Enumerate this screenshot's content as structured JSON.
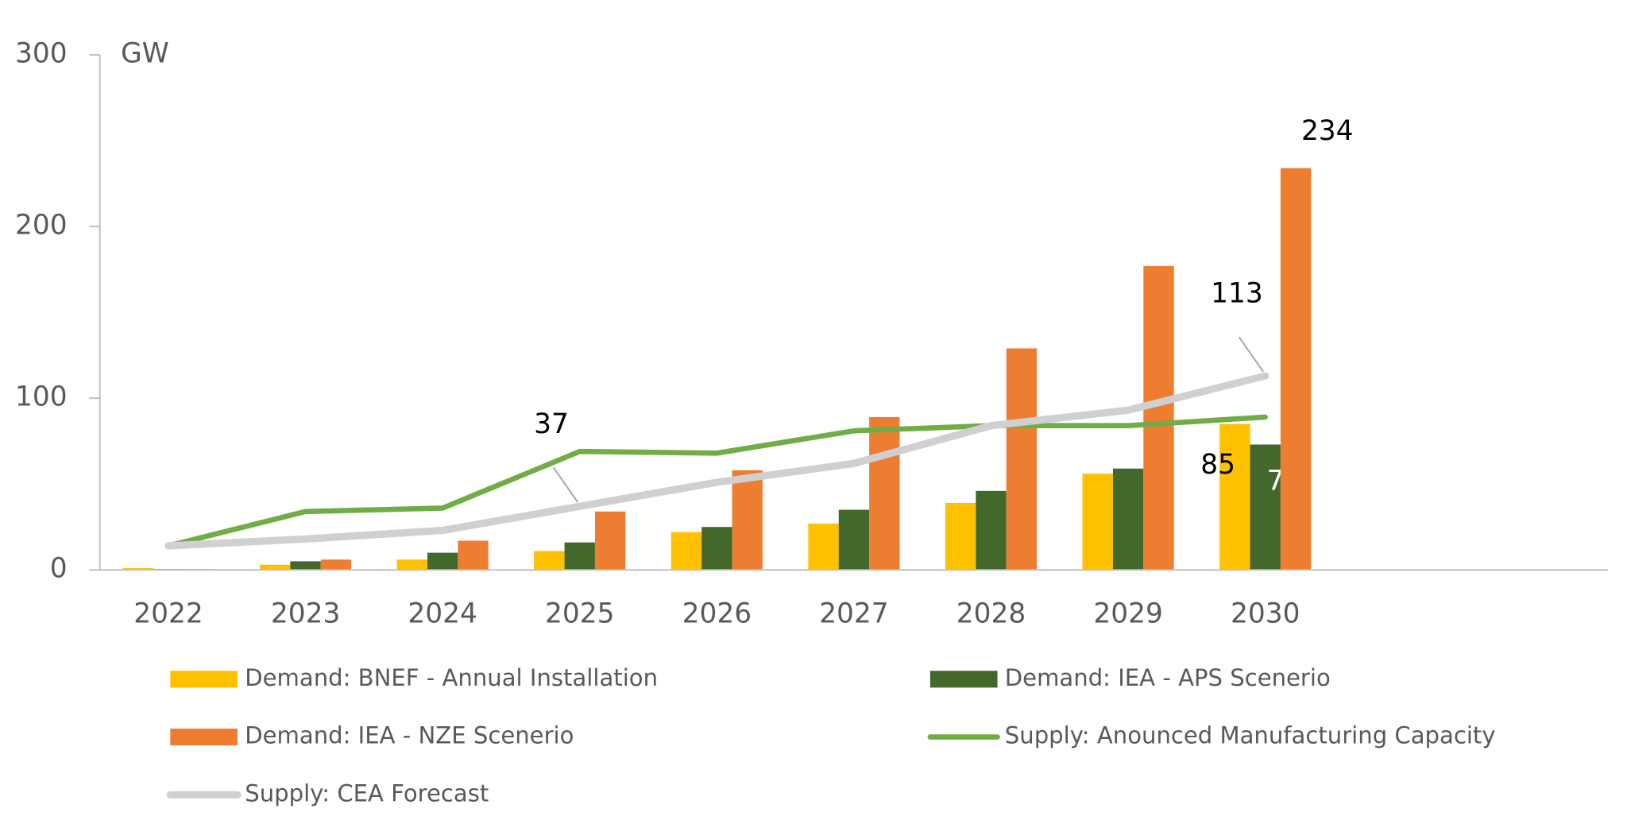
{
  "chart_data": {
    "type": "bar",
    "y_unit": "GW",
    "categories": [
      "2022",
      "2023",
      "2024",
      "2025",
      "2026",
      "2027",
      "2028",
      "2029",
      "2030",
      null,
      null
    ],
    "series": [
      {
        "name": "Demand: BNEF - Annual Installation",
        "type": "bar",
        "color": "#FFC000",
        "values": [
          1,
          3,
          6,
          11,
          22,
          27,
          39,
          56,
          85,
          null,
          null
        ],
        "labeled": [
          8
        ]
      },
      {
        "name": "Demand: IEA - APS Scenerio",
        "type": "bar",
        "color": "#43682B",
        "values": [
          0.5,
          5,
          10,
          16,
          25,
          35,
          46,
          59,
          73,
          null,
          null
        ],
        "labeled": [
          8
        ]
      },
      {
        "name": "Demand: IEA - NZE Scenerio",
        "type": "bar",
        "color": "#ED7D31",
        "values": [
          0.5,
          6,
          17,
          34,
          58,
          89,
          129,
          177,
          234,
          null,
          null
        ],
        "labeled": [
          8
        ]
      },
      {
        "name": "Supply: Anounced Manufacturing Capacity",
        "type": "line",
        "color": "#70AD47",
        "values": [
          14,
          34,
          36,
          69,
          68,
          81,
          84,
          84,
          89,
          null,
          null
        ],
        "labeled": []
      },
      {
        "name": "Supply: CEA Forecast",
        "type": "line",
        "color": "#D0D0D0",
        "values": [
          14,
          18,
          23,
          37,
          51,
          62,
          84,
          93,
          113,
          null,
          null
        ],
        "labeled": [
          3,
          8
        ]
      }
    ],
    "ylim": [
      0,
      300
    ],
    "yticks": [
      0,
      100,
      200,
      300
    ],
    "grid": false
  }
}
